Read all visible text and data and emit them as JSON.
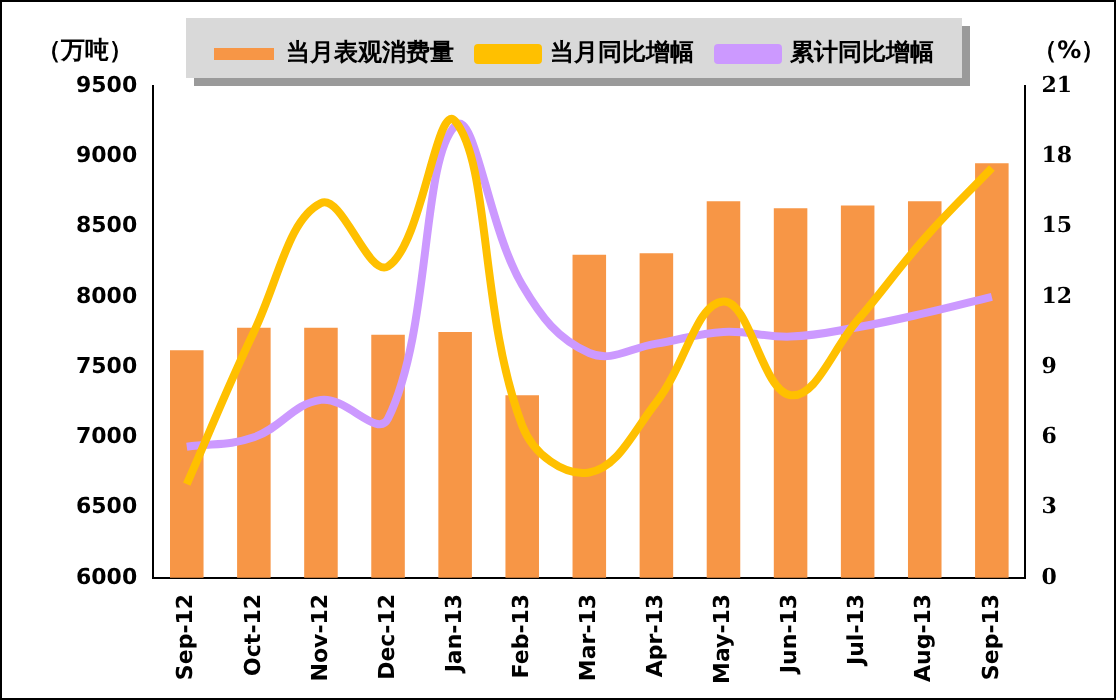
{
  "chart_data": {
    "type": "bar",
    "ylabel": "（万吨）",
    "y2label": "（%）",
    "categories": [
      "Sep-12",
      "Oct-12",
      "Nov-12",
      "Dec-12",
      "Jan-13",
      "Feb-13",
      "Mar-13",
      "Apr-13",
      "May-13",
      "Jun-13",
      "Jul-13",
      "Aug-13",
      "Sep-13"
    ],
    "series": [
      {
        "name": "当月表观消费量",
        "color": "#f79646",
        "values": [
          7620,
          7780,
          7780,
          7730,
          7750,
          7300,
          8300,
          8310,
          8680,
          8630,
          8650,
          8680,
          8950
        ]
      },
      {
        "name": "当月同比增幅",
        "type": "line",
        "axis": "y2",
        "color": "#ffc000",
        "values": [
          4.0,
          10.5,
          16.0,
          13.3,
          19.5,
          6.5,
          4.5,
          7.5,
          11.8,
          7.8,
          11.0,
          14.5,
          17.5
        ]
      },
      {
        "name": "累计同比增幅",
        "type": "line",
        "axis": "y2",
        "color": "#cc99ff",
        "values": [
          5.6,
          6.0,
          7.6,
          6.8,
          19.3,
          12.5,
          9.6,
          10.0,
          10.5,
          10.3,
          10.7,
          11.3,
          12.0
        ]
      }
    ],
    "ylim": [
      6000,
      9500
    ],
    "yticks": [
      6000,
      6500,
      7000,
      7500,
      8000,
      8500,
      9000,
      9500
    ],
    "y2lim": [
      0,
      21
    ],
    "y2ticks": [
      0,
      3,
      6,
      9,
      12,
      15,
      18,
      21
    ],
    "legend": "top",
    "grid": false,
    "marker": "none"
  }
}
